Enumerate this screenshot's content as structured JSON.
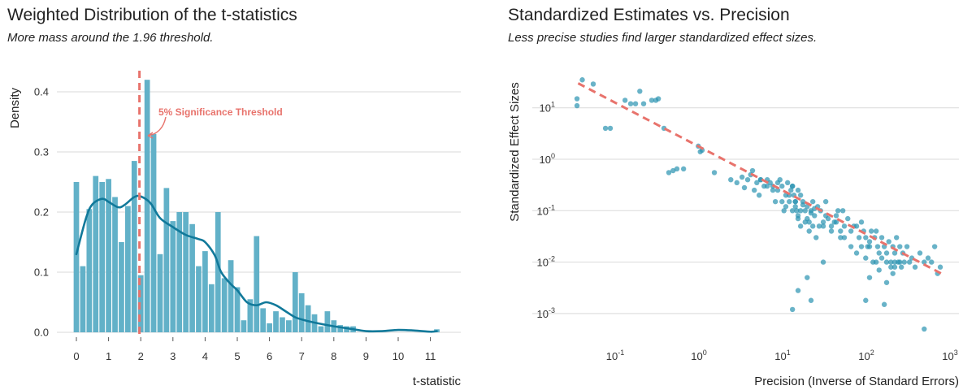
{
  "colors": {
    "bar": "#62b1c8",
    "density": "#11799a",
    "threshold": "#e8736c",
    "point": "#2a93b0",
    "grid": "#d9d9d9"
  },
  "chart_data": [
    {
      "type": "bar",
      "title": "Weighted Distribution of the t-statistics",
      "subtitle": "More mass around the 1.96 threshold.",
      "xlabel": "t-statistic",
      "ylabel": "Density",
      "xlim": [
        -0.4,
        11.5
      ],
      "ylim": [
        0,
        0.44
      ],
      "xticks": [
        "0",
        "1",
        "2",
        "3",
        "4",
        "5",
        "6",
        "7",
        "8",
        "9",
        "10",
        "11"
      ],
      "yticks": [
        "0.0",
        "0.1",
        "0.2",
        "0.3",
        "0.4"
      ],
      "grid": true,
      "bin_width": 0.2,
      "histogram": {
        "x": [
          0,
          0.2,
          0.4,
          0.6,
          0.8,
          1.0,
          1.2,
          1.4,
          1.6,
          1.8,
          2.0,
          2.2,
          2.4,
          2.6,
          2.8,
          3.0,
          3.2,
          3.4,
          3.6,
          3.8,
          4.0,
          4.2,
          4.4,
          4.6,
          4.8,
          5.0,
          5.2,
          5.4,
          5.6,
          5.8,
          6.0,
          6.2,
          6.4,
          6.6,
          6.8,
          7.0,
          7.2,
          7.4,
          7.6,
          7.8,
          8.0,
          8.2,
          8.4,
          8.6,
          11.2
        ],
        "values": [
          0.25,
          0.11,
          0.205,
          0.26,
          0.25,
          0.255,
          0.225,
          0.15,
          0.21,
          0.285,
          0.095,
          0.42,
          0.33,
          0.13,
          0.24,
          0.185,
          0.2,
          0.2,
          0.18,
          0.11,
          0.135,
          0.08,
          0.2,
          0.09,
          0.12,
          0.075,
          0.02,
          0.055,
          0.16,
          0.04,
          0.015,
          0.035,
          0.025,
          0.02,
          0.1,
          0.065,
          0.045,
          0.03,
          0.01,
          0.035,
          0.02,
          0.012,
          0.01,
          0.01,
          0.005
        ]
      },
      "density": {
        "x": [
          0,
          0.3,
          0.5,
          0.8,
          1.0,
          1.3,
          1.5,
          1.8,
          2.0,
          2.3,
          2.6,
          3.0,
          3.4,
          3.8,
          4.0,
          4.3,
          4.5,
          4.8,
          5.0,
          5.3,
          5.6,
          5.9,
          6.2,
          6.5,
          6.8,
          7.1,
          7.5,
          8.0,
          8.5,
          9.0,
          9.5,
          10.0,
          10.5,
          11.0,
          11.2
        ],
        "y": [
          0.13,
          0.19,
          0.213,
          0.222,
          0.217,
          0.208,
          0.212,
          0.225,
          0.226,
          0.215,
          0.19,
          0.175,
          0.162,
          0.155,
          0.15,
          0.128,
          0.1,
          0.08,
          0.07,
          0.05,
          0.045,
          0.05,
          0.045,
          0.035,
          0.025,
          0.02,
          0.015,
          0.01,
          0.006,
          0.002,
          0.002,
          0.004,
          0.003,
          0.001,
          0.002
        ]
      },
      "threshold": {
        "x": 1.96,
        "label": "5% Significance Threshold"
      }
    },
    {
      "type": "scatter",
      "title": "Standardized Estimates vs. Precision",
      "subtitle": "Less precise studies find larger standardized effect sizes.",
      "xlabel": "Precision (Inverse of Standard Errors)",
      "ylabel": "Standardized Effect Sizes",
      "xscale": "log",
      "yscale": "log",
      "xlim": [
        0.02,
        1000
      ],
      "ylim": [
        0.0004,
        50
      ],
      "xticks": [
        {
          "value": 0.1,
          "base": "10",
          "exp": "-1"
        },
        {
          "value": 1,
          "base": "10",
          "exp": "0"
        },
        {
          "value": 10,
          "base": "10",
          "exp": "1"
        },
        {
          "value": 100,
          "base": "10",
          "exp": "2"
        },
        {
          "value": 1000,
          "base": "10",
          "exp": "3"
        }
      ],
      "yticks": [
        {
          "value": 0.001,
          "base": "10",
          "exp": "-3"
        },
        {
          "value": 0.01,
          "base": "10",
          "exp": "-2"
        },
        {
          "value": 0.1,
          "base": "10",
          "exp": "-1"
        },
        {
          "value": 1,
          "base": "10",
          "exp": "0"
        },
        {
          "value": 10,
          "base": "10",
          "exp": "1"
        }
      ],
      "grid": true,
      "trend": {
        "x": [
          0.033,
          720
        ],
        "y": [
          30,
          0.006
        ]
      },
      "points": {
        "x": [
          0.032,
          0.032,
          0.037,
          0.05,
          0.07,
          0.08,
          0.12,
          0.14,
          0.16,
          0.18,
          0.2,
          0.25,
          0.28,
          0.3,
          0.35,
          0.4,
          0.45,
          0.5,
          0.6,
          0.9,
          0.95,
          1.0,
          1.4,
          2.2,
          2.6,
          3.0,
          3.2,
          3.5,
          3.8,
          4.0,
          4.2,
          4.5,
          4.8,
          5.0,
          5.5,
          6.0,
          6.5,
          7.0,
          7.5,
          8.0,
          8.5,
          9.0,
          9.5,
          10.0,
          10.5,
          11.0,
          11.5,
          12.0,
          12.5,
          13.0,
          13.5,
          14.0,
          15.0,
          16.0,
          17.0,
          18.0,
          19.0,
          20.0,
          21.0,
          22.0,
          24.0,
          26.0,
          28.0,
          30.0,
          32.0,
          35.0,
          38.0,
          40.0,
          42.0,
          45.0,
          48.0,
          50.0,
          55.0,
          60.0,
          65.0,
          70.0,
          75.0,
          80.0,
          85.0,
          90.0,
          95.0,
          100.0,
          105.0,
          110.0,
          115.0,
          120.0,
          125.0,
          130.0,
          140.0,
          150.0,
          160.0,
          170.0,
          180.0,
          190.0,
          200.0,
          210.0,
          220.0,
          230.0,
          240.0,
          250.0,
          260.0,
          280.0,
          300.0,
          320.0,
          350.0,
          400.0,
          450.0,
          500.0,
          550.0,
          600.0,
          650.0,
          700.0,
          5.0,
          6.0,
          7.0,
          8.0,
          9.0,
          10.0,
          11.0,
          12.0,
          13.0,
          14.0,
          15.0,
          16.0,
          18.0,
          20.0,
          22.0,
          25.0,
          28.0,
          30.0,
          35.0,
          40.0,
          45.0,
          50.0,
          60.0,
          70.0,
          80.0,
          90.0,
          100.0,
          120.0,
          140.0,
          160.0,
          180.0,
          200.0,
          12.0,
          13.0,
          14.0,
          15.0,
          17.0,
          19.0,
          21.0,
          23.0,
          100.0,
          130.0,
          160.0,
          190.0,
          230.0,
          14.0,
          18.0,
          28.0,
          12.0,
          20.0,
          90.0,
          150.0,
          200.0,
          450.0
        ],
        "y": [
          15.0,
          11.0,
          35.0,
          29.0,
          4.0,
          4.0,
          14.0,
          12.0,
          12.0,
          21.0,
          12.0,
          14.0,
          14.0,
          15.0,
          4.0,
          0.55,
          0.6,
          0.65,
          0.65,
          1.8,
          1.4,
          1.5,
          0.55,
          0.4,
          0.35,
          0.45,
          0.28,
          0.4,
          0.5,
          0.6,
          0.25,
          0.35,
          0.2,
          0.4,
          0.3,
          0.4,
          0.35,
          0.3,
          0.15,
          0.25,
          0.4,
          0.3,
          0.1,
          0.2,
          0.35,
          0.15,
          0.25,
          0.3,
          0.2,
          0.15,
          0.1,
          0.25,
          0.2,
          0.15,
          0.1,
          0.12,
          0.06,
          0.1,
          0.15,
          0.08,
          0.12,
          0.1,
          0.05,
          0.15,
          0.07,
          0.04,
          0.06,
          0.08,
          0.1,
          0.03,
          0.1,
          0.05,
          0.07,
          0.04,
          0.05,
          0.05,
          0.03,
          0.06,
          0.04,
          0.03,
          0.02,
          0.02,
          0.04,
          0.01,
          0.03,
          0.04,
          0.02,
          0.015,
          0.03,
          0.02,
          0.01,
          0.025,
          0.01,
          0.02,
          0.015,
          0.03,
          0.01,
          0.02,
          0.008,
          0.015,
          0.01,
          0.02,
          0.01,
          0.012,
          0.008,
          0.015,
          0.01,
          0.012,
          0.01,
          0.02,
          0.006,
          0.008,
          0.4,
          0.3,
          0.25,
          0.35,
          0.15,
          0.12,
          0.2,
          0.3,
          0.15,
          0.08,
          0.1,
          0.13,
          0.07,
          0.09,
          0.11,
          0.05,
          0.06,
          0.08,
          0.05,
          0.06,
          0.04,
          0.03,
          0.02,
          0.015,
          0.02,
          0.012,
          0.025,
          0.01,
          0.012,
          0.015,
          0.008,
          0.01,
          0.1,
          0.12,
          0.07,
          0.05,
          0.06,
          0.04,
          0.05,
          0.03,
          0.005,
          0.007,
          0.004,
          0.006,
          0.01,
          0.0028,
          0.005,
          0.01,
          0.0012,
          0.0018,
          0.0018,
          0.0015,
          0.008,
          0.0005
        ]
      }
    }
  ]
}
